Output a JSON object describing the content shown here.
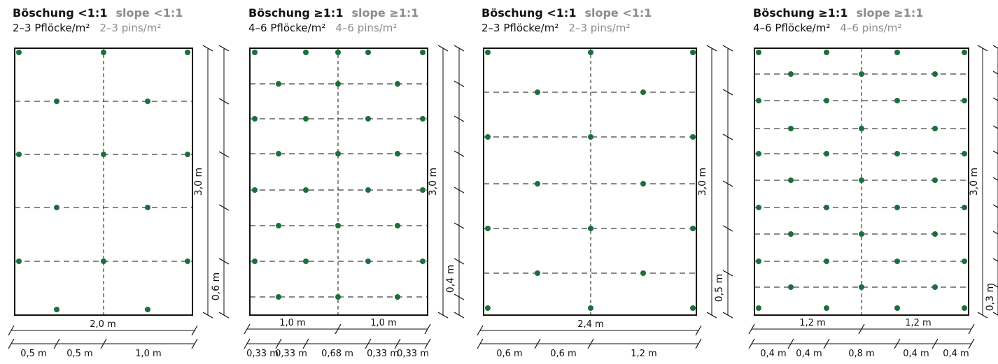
{
  "panels": [
    {
      "title_de": "Böschung <1:1",
      "title_en": "slope <1:1",
      "sub_de": "2–3 Pflöcke/m²",
      "sub_en": "2–3 pins/m²",
      "height_label": "3,0 m",
      "bottom_step_label": "0,6 m",
      "width_total_label": "2,0 m",
      "width_segments": [
        "0,5 m",
        "0,5 m",
        "1,0 m"
      ],
      "hline_count": 4,
      "pin_columns": 3,
      "pin_rows": 6
    },
    {
      "title_de": "Böschung ≥1:1",
      "title_en": "slope ≥1:1",
      "sub_de": "4–6 Pflöcke/m²",
      "sub_en": "4–6 pins/m²",
      "height_label": "3,0 m",
      "bottom_step_label": "0,4 m",
      "width_half_labels": [
        "1,0 m",
        "1,0 m"
      ],
      "width_segments": [
        "0,33 m",
        "0,33 m",
        "0,68 m",
        "0,33 m",
        "0,33 m"
      ],
      "hline_count": 7,
      "pin_columns": 5,
      "pin_rows": 8
    },
    {
      "title_de": "Böschung <1:1",
      "title_en": "slope <1:1",
      "sub_de": "2–3 Pflöcke/m²",
      "sub_en": "2–3 pins/m²",
      "height_label": "3,0 m",
      "bottom_step_label": "0,5 m",
      "width_total_label": "2,4 m",
      "width_segments": [
        "0,6 m",
        "0,6 m",
        "1,2 m"
      ],
      "hline_count": 5,
      "pin_columns": 3,
      "pin_rows": 7
    },
    {
      "title_de": "Böschung ≥1:1",
      "title_en": "slope ≥1:1",
      "sub_de": "4–6 Pflöcke/m²",
      "sub_en": "4–6 pins/m²",
      "height_label": "3,0 m",
      "bottom_step_label": "0,3 m",
      "width_half_labels": [
        "1,2 m",
        "1,2 m"
      ],
      "width_segments": [
        "0,4 m",
        "0,4 m",
        "0,8 m",
        "0,4 m",
        "0,4 m"
      ],
      "hline_count": 9,
      "pin_columns": 7,
      "pin_rows": 11
    }
  ],
  "colors": {
    "pin": "#1c6e3d",
    "line": "#111111",
    "secondary_text": "#8c8c8c"
  }
}
